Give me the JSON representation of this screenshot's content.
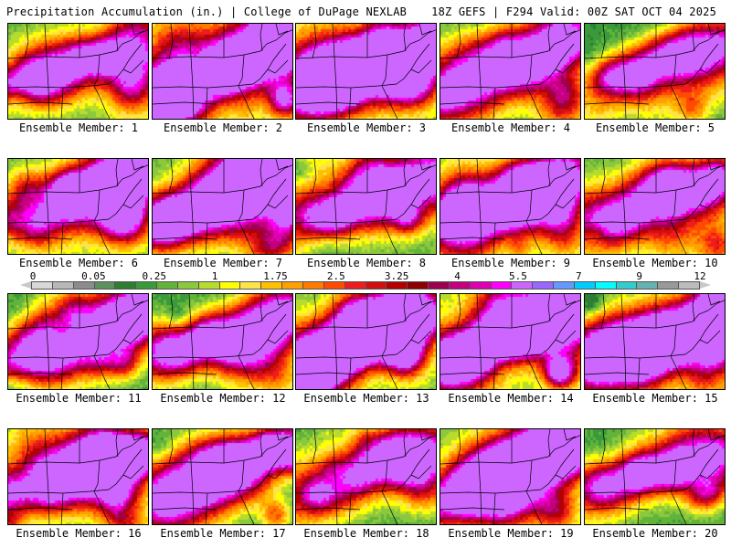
{
  "header": {
    "title": "Precipitation Accumulation (in.) | College of DuPage NEXLAB",
    "run_info": "18Z GEFS | F294 Valid: 00Z SAT OCT 04 2025"
  },
  "members": [
    {
      "label": "Ensemble Member: 1",
      "seed": 11,
      "intensity": 0.55,
      "green_bias": 0.35
    },
    {
      "label": "Ensemble Member: 2",
      "seed": 22,
      "intensity": 0.75,
      "green_bias": 0.2
    },
    {
      "label": "Ensemble Member: 3",
      "seed": 33,
      "intensity": 0.85,
      "green_bias": 0.25
    },
    {
      "label": "Ensemble Member: 4",
      "seed": 44,
      "intensity": 0.55,
      "green_bias": 0.4
    },
    {
      "label": "Ensemble Member: 5",
      "seed": 55,
      "intensity": 0.45,
      "green_bias": 0.5
    },
    {
      "label": "Ensemble Member: 6",
      "seed": 66,
      "intensity": 0.65,
      "green_bias": 0.3
    },
    {
      "label": "Ensemble Member: 7",
      "seed": 77,
      "intensity": 0.6,
      "green_bias": 0.3
    },
    {
      "label": "Ensemble Member: 8",
      "seed": 88,
      "intensity": 0.65,
      "green_bias": 0.3
    },
    {
      "label": "Ensemble Member: 9",
      "seed": 99,
      "intensity": 0.6,
      "green_bias": 0.4
    },
    {
      "label": "Ensemble Member: 10",
      "seed": 110,
      "intensity": 0.55,
      "green_bias": 0.35
    },
    {
      "label": "Ensemble Member: 11",
      "seed": 121,
      "intensity": 0.55,
      "green_bias": 0.45
    },
    {
      "label": "Ensemble Member: 12",
      "seed": 132,
      "intensity": 0.45,
      "green_bias": 0.55
    },
    {
      "label": "Ensemble Member: 13",
      "seed": 143,
      "intensity": 0.8,
      "green_bias": 0.25
    },
    {
      "label": "Ensemble Member: 14",
      "seed": 154,
      "intensity": 0.9,
      "green_bias": 0.15
    },
    {
      "label": "Ensemble Member: 15",
      "seed": 165,
      "intensity": 0.7,
      "green_bias": 0.35
    },
    {
      "label": "Ensemble Member: 16",
      "seed": 176,
      "intensity": 0.65,
      "green_bias": 0.3
    },
    {
      "label": "Ensemble Member: 17",
      "seed": 187,
      "intensity": 0.6,
      "green_bias": 0.35
    },
    {
      "label": "Ensemble Member: 18",
      "seed": 198,
      "intensity": 0.6,
      "green_bias": 0.45
    },
    {
      "label": "Ensemble Member: 19",
      "seed": 209,
      "intensity": 0.65,
      "green_bias": 0.3
    },
    {
      "label": "Ensemble Member: 20",
      "seed": 220,
      "intensity": 0.5,
      "green_bias": 0.45
    }
  ],
  "colorbar": {
    "tick_labels": [
      "0",
      "0.05",
      "0.25",
      "1",
      "1.75",
      "2.5",
      "3.25",
      "4",
      "5.5",
      "7",
      "9",
      "12"
    ],
    "colors": [
      "#d8d8d8",
      "#b8b8b8",
      "#8c8c8c",
      "#5e8f5e",
      "#2e7d32",
      "#3a9a3a",
      "#62b33a",
      "#8cc83c",
      "#b7dc2e",
      "#ffff00",
      "#ffe34a",
      "#ffc000",
      "#ff9f00",
      "#ff7a00",
      "#ff4a00",
      "#ee1c1c",
      "#d20f0f",
      "#b40000",
      "#8f0000",
      "#9e0050",
      "#c4007e",
      "#e000b4",
      "#ff00ff",
      "#cc66ff",
      "#9966ff",
      "#6699ff",
      "#00ccff",
      "#00ffff",
      "#33cccc",
      "#66b2b2",
      "#999999",
      "#bcbcbc"
    ]
  }
}
